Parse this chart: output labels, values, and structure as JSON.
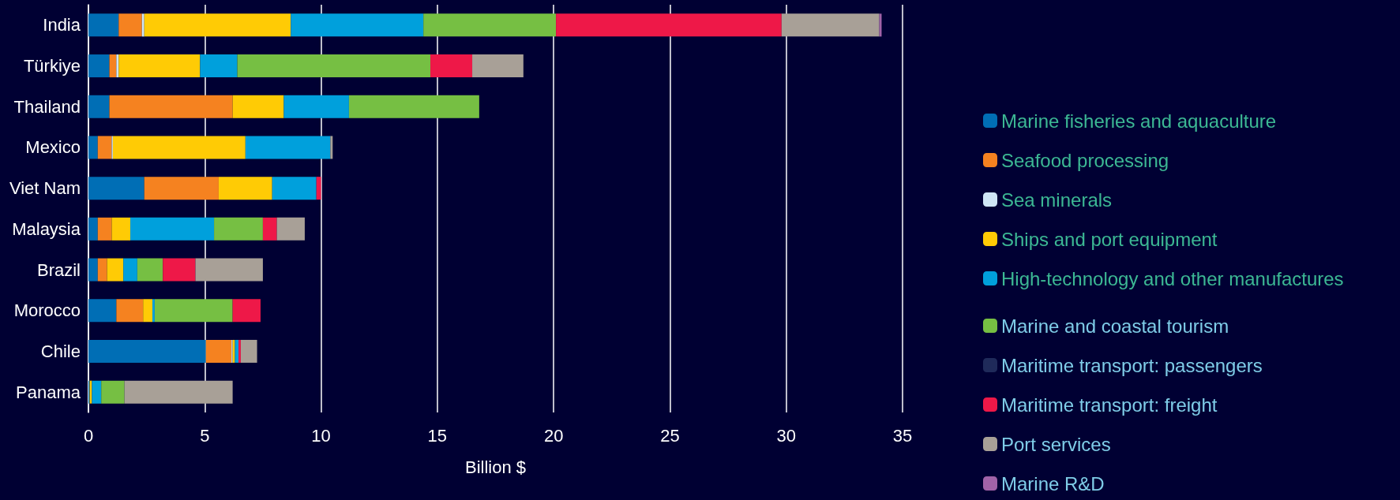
{
  "chart_data": {
    "type": "bar",
    "orientation": "horizontal",
    "stacked": true,
    "categories": [
      "India",
      "Türkiye",
      "Thailand",
      "Mexico",
      "Viet Nam",
      "Malaysia",
      "Brazil",
      "Morocco",
      "Chile",
      "Panama"
    ],
    "series": [
      {
        "name": "Marine fisheries and aquaculture",
        "color": "#006eb5",
        "values": [
          1.3,
          0.9,
          0.9,
          0.4,
          2.4,
          0.4,
          0.4,
          1.2,
          5.05,
          0.05
        ]
      },
      {
        "name": "Seafood processing",
        "color": "#f58220",
        "values": [
          1.0,
          0.3,
          5.3,
          0.6,
          3.2,
          0.6,
          0.4,
          1.15,
          1.1,
          0
        ]
      },
      {
        "name": "Sea minerals",
        "color": "#cfe6f5",
        "values": [
          0.1,
          0.1,
          0,
          0.05,
          0,
          0,
          0,
          0,
          0.05,
          0
        ]
      },
      {
        "name": "Ships and port equipment",
        "color": "#ffcb05",
        "values": [
          6.3,
          3.5,
          2.2,
          5.7,
          2.3,
          0.8,
          0.7,
          0.4,
          0.1,
          0.1
        ]
      },
      {
        "name": "High-technology and other manufactures",
        "color": "#00a0dc",
        "values": [
          5.7,
          1.6,
          2.8,
          3.65,
          1.9,
          3.6,
          0.6,
          0.1,
          0.15,
          0.4
        ]
      },
      {
        "name": "Marine and coastal tourism",
        "color": "#76bf43",
        "values": [
          5.7,
          8.3,
          5.6,
          0,
          0,
          2.1,
          1.1,
          3.35,
          0,
          1.0
        ]
      },
      {
        "name": "Maritime transport: passengers",
        "color": "#1f2a5a",
        "values": [
          0,
          0,
          0,
          0,
          0,
          0,
          0,
          0,
          0,
          0
        ]
      },
      {
        "name": "Maritime transport: freight",
        "color": "#ee1848",
        "values": [
          9.7,
          1.8,
          0,
          0,
          0.2,
          0.6,
          1.4,
          1.2,
          0.1,
          0
        ]
      },
      {
        "name": "Port services",
        "color": "#a8a097",
        "values": [
          4.2,
          2.2,
          0,
          0.1,
          0,
          1.2,
          2.9,
          0,
          0.7,
          4.65
        ]
      },
      {
        "name": "Marine R&D",
        "color": "#a163a8",
        "values": [
          0.1,
          0,
          0,
          0,
          0,
          0,
          0,
          0,
          0,
          0
        ]
      }
    ],
    "xlabel": "Billion $",
    "xlim": [
      0,
      35
    ],
    "xticks": [
      0,
      5,
      10,
      15,
      20,
      25,
      30,
      35
    ],
    "grid": "x",
    "legend": "right"
  }
}
